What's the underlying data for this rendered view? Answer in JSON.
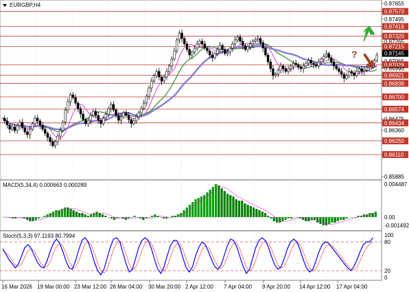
{
  "header": {
    "symbol_label": "EURGBP,H4"
  },
  "chart_data": {
    "type": "candlestick",
    "symbol": "EURGBP",
    "timeframe": "H4",
    "price_axis": {
      "ticks": [
        "0.87655",
        "0.87573",
        "0.87495",
        "0.87419",
        "0.87320",
        "0.87265",
        "0.87215",
        "0.87145",
        "0.87065",
        "0.87028",
        "0.86990",
        "0.86921",
        "0.86838",
        "0.86700",
        "0.86574",
        "0.86475",
        "0.86434",
        "0.86360",
        "0.86250",
        "0.86110",
        "0.85885"
      ],
      "resistance_levels": [
        "0.87573",
        "0.87419",
        "0.87320",
        "0.87215",
        "0.87028"
      ],
      "support_levels": [
        "0.86921",
        "0.86838",
        "0.86700",
        "0.86574",
        "0.86434",
        "0.86250",
        "0.86110"
      ],
      "current_price": "0.87145"
    },
    "time_axis": {
      "labels": [
        "16 Mar 2026",
        "19 Mar 00:00",
        "23 Mar 12:00",
        "26 Mar 04:00",
        "30 Mar 20:00",
        "2 Apr 12:00",
        "7 Apr 04:00",
        "9 Apr 20:00",
        "14 Apr 12:00",
        "17 Apr 04:00"
      ]
    },
    "price_series_y": [
      172,
      176,
      182,
      188,
      185,
      190,
      183,
      178,
      186,
      192,
      196,
      188,
      180,
      172,
      176,
      182,
      188,
      194,
      200,
      206,
      212,
      206,
      198,
      190,
      178,
      160,
      148,
      138,
      142,
      150,
      158,
      166,
      174,
      180,
      175,
      168,
      162,
      168,
      175,
      180,
      172,
      166,
      158,
      152,
      160,
      168,
      175,
      170,
      164,
      168,
      174,
      180,
      176,
      170,
      164,
      158,
      150,
      140,
      128,
      118,
      110,
      104,
      112,
      118,
      112,
      104,
      96,
      86,
      74,
      58,
      48,
      56,
      64,
      72,
      80,
      76,
      70,
      64,
      60,
      64,
      70,
      74,
      80,
      84,
      78,
      72,
      66,
      72,
      78,
      76,
      70,
      64,
      58,
      54,
      60,
      66,
      72,
      68,
      64,
      60,
      58,
      56,
      62,
      70,
      80,
      90,
      100,
      110,
      108,
      102,
      96,
      100,
      104,
      100,
      96,
      92,
      94,
      98,
      100,
      96,
      92,
      88,
      92,
      94,
      96,
      90,
      86,
      82,
      78,
      84,
      90,
      96,
      100,
      104,
      108,
      114,
      110,
      104,
      106,
      110,
      104,
      100,
      104,
      102,
      98,
      96,
      92,
      88,
      80
    ],
    "indicators": {
      "macd": {
        "label": "MACD(5,34,4) 0.000663 0.000289",
        "axis": [
          "0.004487",
          "0.00",
          "-0.001492"
        ],
        "bars_y": [
          316,
          316,
          317,
          318,
          318,
          316,
          316,
          318,
          320,
          322,
          322,
          320,
          318,
          316,
          314,
          312,
          310,
          308,
          306,
          306,
          304,
          302,
          302,
          304,
          306,
          308,
          310,
          310,
          312,
          314,
          312,
          310,
          308,
          310,
          312,
          314,
          316,
          318,
          320,
          318,
          316,
          318,
          320,
          318,
          316,
          314,
          316,
          318,
          320,
          318,
          316,
          314,
          312,
          314,
          316,
          318,
          318,
          316,
          314,
          314,
          312,
          310,
          306,
          302,
          298,
          294,
          290,
          288,
          286,
          284,
          280,
          276,
          272,
          268,
          270,
          274,
          278,
          282,
          284,
          286,
          290,
          292,
          292,
          296,
          298,
          300,
          302,
          304,
          306,
          308,
          310,
          314,
          318,
          322,
          324,
          324,
          322,
          320,
          318,
          318,
          316,
          316,
          318,
          320,
          322,
          322,
          320,
          320,
          324,
          326,
          328,
          328,
          326,
          324,
          324,
          322,
          320,
          320,
          318,
          316,
          316,
          316,
          314,
          314,
          312,
          312,
          310,
          310,
          308
        ],
        "colors": {
          "up": "#00a000",
          "down": "#008000",
          "signal": "#ff00ff"
        }
      },
      "stochastic": {
        "label": "Stoch(5,3,3) 97.1193 80.7994",
        "axis": [
          "100",
          "80",
          "20",
          "0"
        ],
        "k_y": [
          362,
          370,
          378,
          384,
          390,
          384,
          372,
          360,
          356,
          362,
          372,
          382,
          388,
          390,
          380,
          366,
          354,
          348,
          354,
          366,
          380,
          390,
          392,
          380,
          364,
          350,
          346,
          352,
          366,
          382,
          394,
          400,
          392,
          376,
          360,
          348,
          346,
          352,
          368,
          384,
          396,
          392,
          376,
          360,
          350,
          346,
          350,
          362,
          378,
          392,
          398,
          388,
          372,
          358,
          350,
          350,
          360,
          376,
          390,
          396,
          388,
          372,
          360,
          352,
          356,
          366,
          378,
          388,
          392,
          386,
          372,
          358,
          348,
          350,
          360,
          374,
          388,
          398,
          392,
          376,
          360,
          350,
          346,
          350,
          360,
          374,
          386,
          392,
          388,
          376,
          362,
          352,
          348,
          352,
          364,
          378,
          390,
          396,
          392,
          380,
          366,
          356,
          352,
          354,
          360,
          366,
          372,
          378,
          384,
          390,
          394,
          388,
          378,
          366,
          356,
          352,
          352,
          346
        ],
        "colors": {
          "k": "#0000ff",
          "d": "#ff0000",
          "levels": "#c00000"
        }
      }
    },
    "moving_averages": {
      "ma_blue": {
        "color": "#8a7ad8"
      },
      "ma_green": {
        "color": "#2e8b2e"
      },
      "ma_magenta": {
        "color": "#e23ae2"
      }
    },
    "annotations": {
      "up_arrow_color": "#33aa33",
      "down_arrow_color": "#a0402a",
      "question_mark": "?"
    }
  },
  "colors": {
    "grid": "#cccccc",
    "level_line": "#c0392b",
    "price_tag_bg": "#000000",
    "candle_up": "#ffffff",
    "candle_down": "#000000"
  }
}
